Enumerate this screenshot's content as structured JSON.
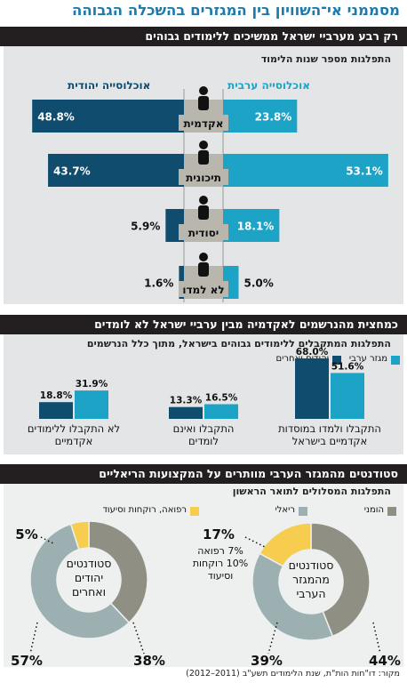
{
  "title": "מסממני אי־השוויון בין המגזרים בהשכלה הגבוהה",
  "colors": {
    "arab": "#1da3c6",
    "jewish": "#0f4c6e",
    "gray": "#8f8f84",
    "teal_gray": "#9cb0b1",
    "yellow": "#f6cd4e",
    "dark": "#231f20",
    "title_blue": "#1e7aab"
  },
  "section1": {
    "header": "רק רבע מערביי ישראל ממשיכים ללימודים גבוהים",
    "subtitle": "התפלגות מספר שנות הלימוד",
    "legend_arab": "אוכלוסייה ערבית",
    "legend_jewish": "אוכלוסייה יהודית"
  },
  "section2": {
    "header": "כמחצית מהנרשמים לאקדמיה מבין ערביי ישראל לא לומדים",
    "subtitle": "התפלגות המתקבלים ללימודים גבוהים בישראל, מתוך כלל הנרשמים",
    "legend_arab": "מגזר ערבי",
    "legend_jewish": "יהודים ואחרים"
  },
  "section3": {
    "header": "סטודנטים מהמגזר הערבי מוותרים על המקצועות הריאליים",
    "subtitle": "התפלגות המסלולים לתואר הראשון",
    "legend_humanities": "הומני",
    "legend_science": "ריאלי",
    "legend_medicine": "רפואה, רוקחות וסיעוד"
  },
  "source": "מקור: דו\"חות הות\"ת, שנת הלימודים תשע\"ב (2011–2012)",
  "chart_data": [
    {
      "type": "bar",
      "title": "רק רבע מערביי ישראל ממשיכים ללימודים גבוהים",
      "subtitle": "התפלגות מספר שנות הלימוד",
      "categories": [
        "אקדמית",
        "תיכונית",
        "יסודית",
        "לא למדו"
      ],
      "series": [
        {
          "name": "אוכלוסייה ערבית",
          "values": [
            23.8,
            53.1,
            18.1,
            5.0
          ],
          "labels": [
            "23.8%",
            "53.1%",
            "18.1%",
            "5.0%"
          ]
        },
        {
          "name": "אוכלוסייה יהודית",
          "values": [
            48.8,
            43.7,
            5.9,
            1.6
          ],
          "labels": [
            "48.8%",
            "43.7%",
            "5.9%",
            "1.6%"
          ]
        }
      ]
    },
    {
      "type": "bar",
      "title": "כמחצית מהנרשמים לאקדמיה מבין ערביי ישראל לא לומדים",
      "subtitle": "התפלגות המתקבלים ללימודים גבוהים בישראל, מתוך כלל הנרשמים",
      "categories": [
        "התקבלו ולמדו במוסדות אקדמיים בישראל",
        "התקבלו ואינם לומדים",
        "לא התקבלו ללימודים אקדמיים"
      ],
      "category_lines": [
        [
          "התקבלו ולמדו במוסדות",
          "אקדמיים בישראל"
        ],
        [
          "התקבלו ואינם",
          "לומדים"
        ],
        [
          "לא התקבלו ללימודים",
          "אקדמיים"
        ]
      ],
      "series": [
        {
          "name": "מגזר ערבי",
          "values": [
            51.6,
            16.5,
            31.9
          ],
          "labels": [
            "51.6%",
            "16.5%",
            "31.9%"
          ]
        },
        {
          "name": "יהודים ואחרים",
          "values": [
            68.0,
            13.3,
            18.8
          ],
          "labels": [
            "68.0%",
            "13.3%",
            "18.8%"
          ]
        }
      ]
    },
    {
      "type": "pie",
      "title": "סטודנטים מהמגזר הערבי מוותרים על המקצועות הריאליים",
      "subtitle": "התפלגות המסלולים לתואר הראשון",
      "groups": [
        {
          "name_lines": [
            "סטודנטים",
            "מהמגזר",
            "הערבי"
          ],
          "slices": [
            {
              "label": "הומני",
              "value": 44,
              "text": "44%"
            },
            {
              "label": "ריאלי",
              "value": 39,
              "text": "39%"
            },
            {
              "label": "רפואה, רוקחות וסיעוד",
              "value": 17,
              "text": "17%"
            }
          ],
          "note_lines": [
            "7% רפואה",
            "10% רוקחות",
            "וסיעוד"
          ]
        },
        {
          "name_lines": [
            "סטודנטים",
            "יהודים",
            "ואחרים"
          ],
          "slices": [
            {
              "label": "הומני",
              "value": 38,
              "text": "38%"
            },
            {
              "label": "ריאלי",
              "value": 57,
              "text": "57%"
            },
            {
              "label": "רפואה, רוקחות וסיעוד",
              "value": 5,
              "text": "5%"
            }
          ]
        }
      ]
    }
  ]
}
